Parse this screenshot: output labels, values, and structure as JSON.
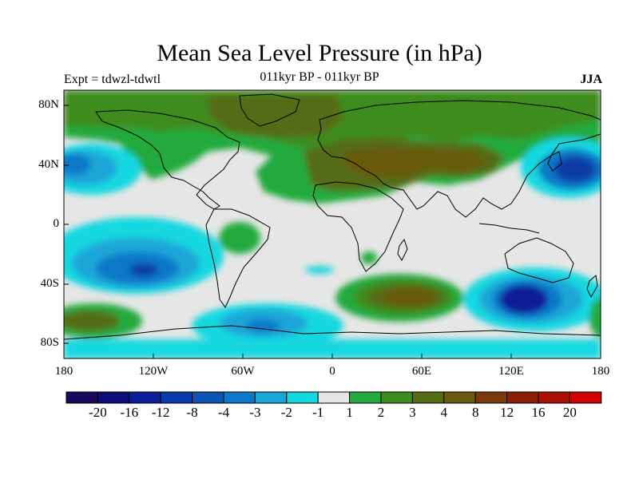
{
  "title": "Mean Sea Level Pressure (in hPa)",
  "experiment_label": "Expt = tdwzl-tdwtl",
  "period_label": "011kyr BP - 011kyr BP",
  "season_label": "JJA",
  "lat_ticks": [
    "80N",
    "40N",
    "0",
    "40S",
    "80S"
  ],
  "lon_ticks": [
    "180",
    "120W",
    "60W",
    "0",
    "60E",
    "120E",
    "180"
  ],
  "colorbar": {
    "labels": [
      "-20",
      "-16",
      "-12",
      "-8",
      "-4",
      "-3",
      "-2",
      "-1",
      "1",
      "2",
      "3",
      "4",
      "8",
      "12",
      "16",
      "20"
    ],
    "colors": [
      "#1a0a5c",
      "#0d0d7a",
      "#0a1f96",
      "#0a3aa6",
      "#0b55b5",
      "#0d78c8",
      "#1ca6d8",
      "#16d8e0",
      "#e6e6e6",
      "#22aa3c",
      "#3e8c1e",
      "#556c12",
      "#6b5a10",
      "#7a3a0c",
      "#8a1f08",
      "#aa1004",
      "#d00000"
    ]
  },
  "colors": {
    "neutral": "#e6e6e6",
    "light_green": "#22aa3c",
    "mid_green": "#3e8c1e",
    "olive": "#556c12",
    "brown": "#6b5a10",
    "cyan": "#16d8e0",
    "sky": "#1ca6d8",
    "blue": "#0d78c8",
    "deep_blue": "#0a3aa6",
    "navy": "#0a1f96"
  }
}
